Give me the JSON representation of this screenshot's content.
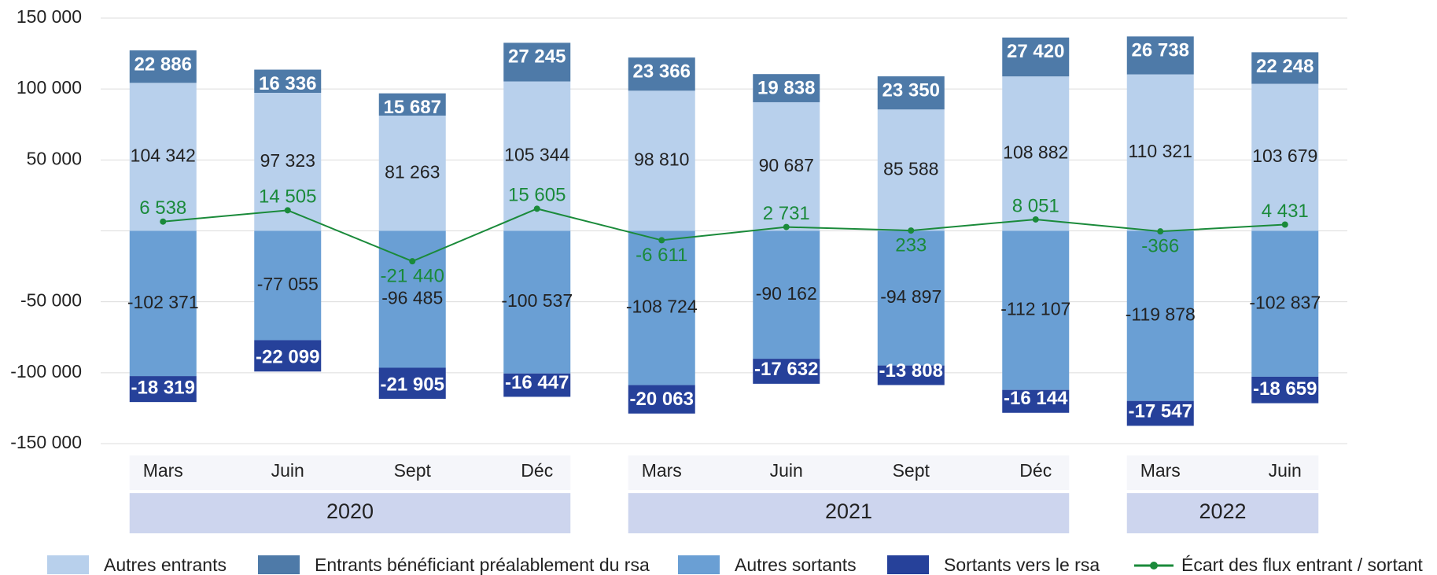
{
  "chart_data": {
    "type": "stacked_bar_line",
    "categories": [
      "Mars",
      "Juin",
      "Sept",
      "Déc",
      "Mars",
      "Juin",
      "Sept",
      "Déc",
      "Mars",
      "Juin"
    ],
    "category_groups": [
      "2020",
      "2020",
      "2020",
      "2020",
      "2021",
      "2021",
      "2021",
      "2021",
      "2022",
      "2022"
    ],
    "ylim": [
      -150000,
      150000
    ],
    "yticks": [
      {
        "value": -150000,
        "label": "-150 000"
      },
      {
        "value": -100000,
        "label": "-100 000"
      },
      {
        "value": -50000,
        "label": "-50 000"
      },
      {
        "value": 50000,
        "label": "50 000"
      },
      {
        "value": 100000,
        "label": "100 000"
      },
      {
        "value": 150000,
        "label": "150 000"
      }
    ],
    "grid": true,
    "series": [
      {
        "name": "Autres entrants",
        "color": "#b8d0ec",
        "kind": "bar",
        "values": [
          104342,
          97323,
          81263,
          105344,
          98810,
          90687,
          85588,
          108882,
          110321,
          103679
        ],
        "value_labels": [
          "104 342",
          "97 323",
          "81 263",
          "105 344",
          "98 810",
          "90 687",
          "85 588",
          "108 882",
          "110 321",
          "103 679"
        ]
      },
      {
        "name": "Entrants bénéficiant préalablement du rsa",
        "color": "#4e7aa8",
        "kind": "bar",
        "values": [
          22886,
          16336,
          15687,
          27245,
          23366,
          19838,
          23350,
          27420,
          26738,
          22248
        ],
        "value_labels": [
          "22 886",
          "16 336",
          "15 687",
          "27 245",
          "23 366",
          "19 838",
          "23 350",
          "27 420",
          "26 738",
          "22 248"
        ]
      },
      {
        "name": "Autres sortants",
        "color": "#6a9fd4",
        "kind": "bar",
        "values": [
          -102371,
          -77055,
          -96485,
          -100537,
          -108724,
          -90162,
          -94897,
          -112107,
          -119878,
          -102837
        ],
        "value_labels": [
          "-102 371",
          "-77 055",
          "-96 485",
          "-100 537",
          "-108 724",
          "-90 162",
          "-94 897",
          "-112 107",
          "-119 878",
          "-102 837"
        ]
      },
      {
        "name": "Sortants vers le rsa",
        "color": "#26419a",
        "kind": "bar",
        "values": [
          -18319,
          -22099,
          -21905,
          -16447,
          -20063,
          -17632,
          -13808,
          -16144,
          -17547,
          -18659
        ],
        "value_labels": [
          "-18 319",
          "-22 099",
          "-21 905",
          "-16 447",
          "-20 063",
          "-17 632",
          "-13 808",
          "-16 144",
          "-17 547",
          "-18 659"
        ]
      },
      {
        "name": "Écart des flux entrant / sortant",
        "color": "#1a8a3a",
        "kind": "line",
        "values": [
          6538,
          14505,
          -21440,
          15605,
          -6611,
          2731,
          233,
          8051,
          -366,
          4431
        ],
        "value_labels": [
          "6 538",
          "14 505",
          "-21 440",
          "15 605",
          "-6 611",
          "2 731",
          "233",
          "8 051",
          "-366",
          "4 431"
        ]
      }
    ]
  }
}
